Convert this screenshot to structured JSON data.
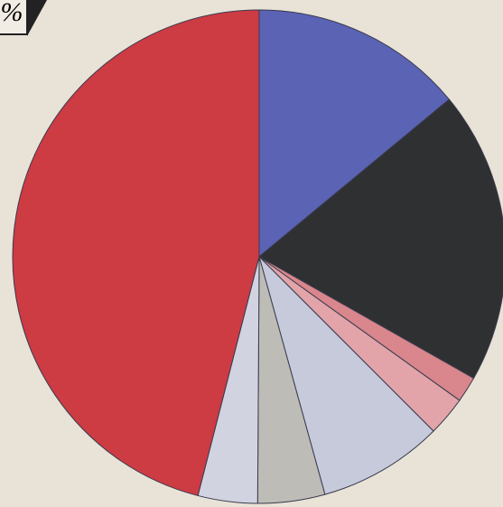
{
  "chart_data": {
    "type": "pie",
    "unit_label": "%",
    "categories": [
      null,
      null,
      null,
      null,
      null,
      null,
      null,
      null
    ],
    "values": [
      14.0,
      19.2,
      1.7,
      2.6,
      8.2,
      4.4,
      3.9,
      46.0
    ],
    "colors": [
      "#5b63b5",
      "#2f3031",
      "#d9868c",
      "#e2a4a9",
      "#c6cadb",
      "#bdbcb6",
      "#d2d3e0",
      "#cd3b43"
    ],
    "start_angle": 0,
    "direction": "clockwise"
  }
}
